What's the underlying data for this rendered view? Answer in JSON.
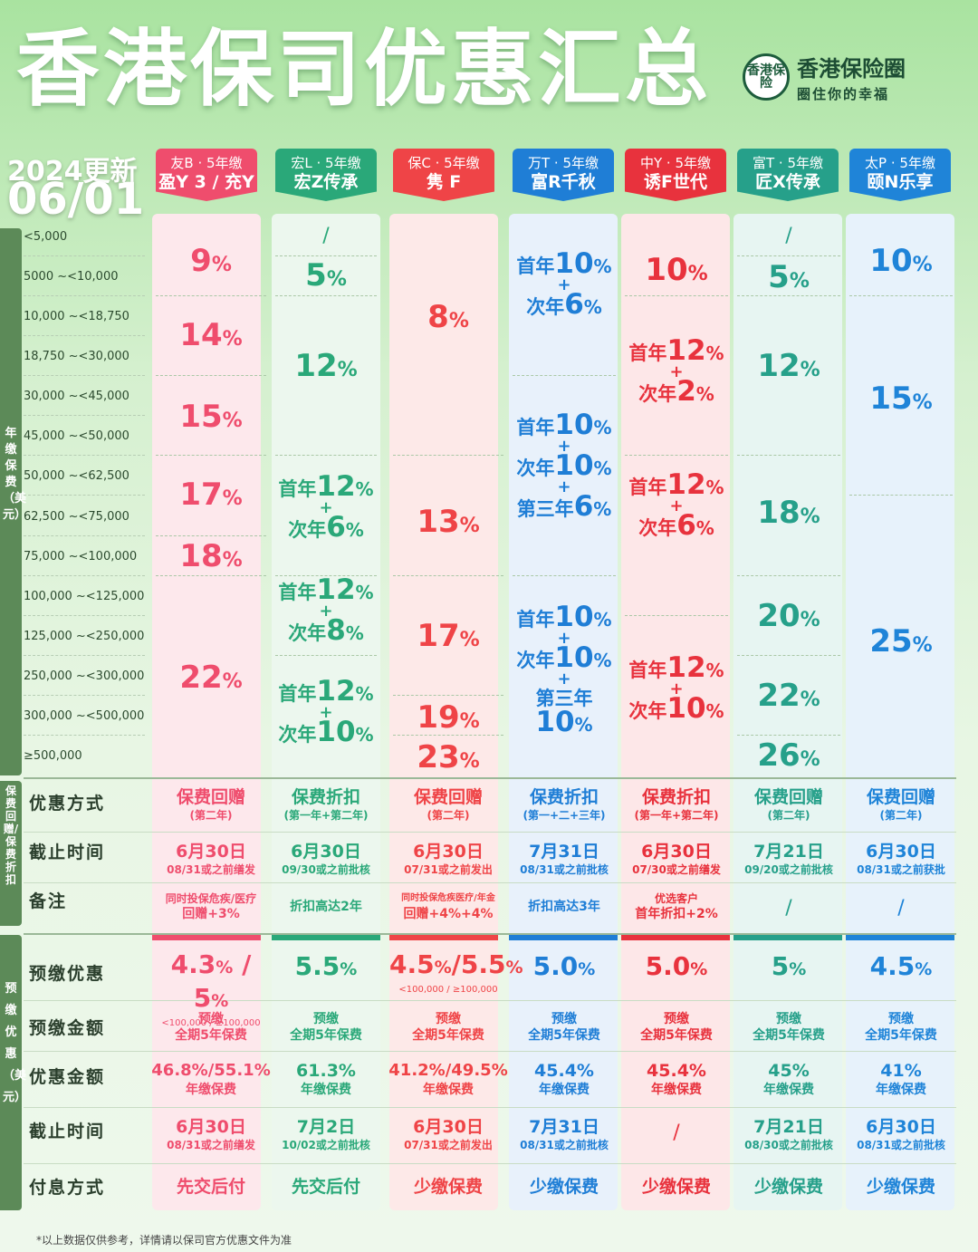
{
  "title": "香港保司优惠汇总",
  "brand": {
    "logo_text": "香港保险",
    "name": "香港保险圈",
    "slogan": "圈住你的幸福"
  },
  "update": {
    "year": "2024更新",
    "date": "06/01"
  },
  "side_titles": {
    "premium": "年缴保费（美元）",
    "rebate": "保费回赠/保费折扣",
    "prepay": "预缴优惠（美元）"
  },
  "bands": [
    "<5,000",
    "5000    ~<10,000",
    "10,000  ~<18,750",
    "18,750  ~<30,000",
    "30,000  ~<45,000",
    "45,000  ~<50,000",
    "50,000  ~<62,500",
    "62,500  ~<75,000",
    "75,000  ~<100,000",
    "100,000 ~<125,000",
    "125,000 ~<250,000",
    "250,000 ~<300,000",
    "300,000 ~<500,000",
    "≥500,000"
  ],
  "colors": {
    "c1": "#ef4d6d",
    "c2": "#2aa879",
    "c3": "#ef4447",
    "c4": "#1f7ed6",
    "c5": "#e8323d",
    "c6": "#26a08a",
    "c7": "#1f84d8"
  },
  "products": [
    {
      "l1": "友B · 5年缴",
      "l2": "盈Y 3 / 充Y"
    },
    {
      "l1": "宏L · 5年缴",
      "l2": "宏Z传承"
    },
    {
      "l1": "保C · 5年缴",
      "l2": "隽 F"
    },
    {
      "l1": "万T · 5年缴",
      "l2": "富R千秋"
    },
    {
      "l1": "中Y · 5年缴",
      "l2": "诱F世代"
    },
    {
      "l1": "富T · 5年缴",
      "l2": "匠X传承"
    },
    {
      "l1": "太P · 5年缴",
      "l2": "颐N乐享"
    }
  ],
  "rates": {
    "c1": [
      "9",
      "%",
      "14",
      "%",
      "15",
      "%",
      "17",
      "%",
      "18",
      "%",
      "22",
      "%"
    ],
    "c2": [
      "/",
      "5",
      "%",
      "12",
      "%"
    ],
    "c3": [
      "8",
      "%",
      "13",
      "%",
      "17",
      "%",
      "19",
      "%",
      "23",
      "%"
    ],
    "c5": [
      "10",
      "%"
    ],
    "c6": [
      "/",
      "5",
      "%",
      "12",
      "%",
      "18",
      "%",
      "20",
      "%",
      "22",
      "%",
      "26",
      "%"
    ],
    "c7": [
      "10",
      "%",
      "15",
      "%",
      "25",
      "%"
    ]
  },
  "mix": {
    "first": "首年",
    "second": "次年",
    "third": "第三年",
    "plus": "+",
    "c2a": [
      "12",
      "%",
      "6",
      "%"
    ],
    "c2b": [
      "12",
      "%",
      "8",
      "%"
    ],
    "c2c": [
      "12",
      "%",
      "10",
      "%"
    ],
    "c4a": [
      "10",
      "%",
      "6",
      "%"
    ],
    "c4b": [
      "10",
      "%",
      "10",
      "%",
      "6",
      "%"
    ],
    "c4c": [
      "10",
      "%",
      "10",
      "%",
      "10",
      "%"
    ],
    "c5a": [
      "12",
      "%",
      "2",
      "%"
    ],
    "c5b": [
      "12",
      "%",
      "6",
      "%"
    ],
    "c5c": [
      "12",
      "%",
      "10",
      "%"
    ]
  },
  "rows": {
    "method": "优惠方式",
    "deadline": "截止时间",
    "remark": "备注",
    "prepay": "预缴优惠",
    "prepay_amount": "预缴金额",
    "discount_amount": "优惠金额",
    "deadline2": "截止时间",
    "payment": "付息方式"
  },
  "method": [
    [
      "保费回赠",
      "(第二年)"
    ],
    [
      "保费折扣",
      "(第一年+第二年)"
    ],
    [
      "保费回赠",
      "(第二年)"
    ],
    [
      "保费折扣",
      "(第一+二+三年)"
    ],
    [
      "保费折扣",
      "(第一年+第二年)"
    ],
    [
      "保费回赠",
      "(第二年)"
    ],
    [
      "保费回赠",
      "(第二年)"
    ]
  ],
  "deadline": [
    [
      "6月30日",
      "08/31或之前缮发"
    ],
    [
      "6月30日",
      "09/30或之前批核"
    ],
    [
      "6月30日",
      "07/31或之前发出"
    ],
    [
      "7月31日",
      "08/31或之前批核"
    ],
    [
      "6月30日",
      "07/30或之前缮发"
    ],
    [
      "7月21日",
      "09/20或之前批核"
    ],
    [
      "6月30日",
      "08/31或之前获批"
    ]
  ],
  "remark": [
    [
      "同时投保危疾/医疗",
      "回赠+3%"
    ],
    [
      "折扣高达2年",
      ""
    ],
    [
      "同时投保危疾医疗/年金",
      "回赠+4%+4%"
    ],
    [
      "折扣高达3年",
      ""
    ],
    [
      "优选客户",
      "首年折扣+2%"
    ],
    [
      "/",
      ""
    ],
    [
      "/",
      ""
    ]
  ],
  "prepay": [
    [
      "4.3",
      "%",
      " / ",
      "5",
      "%",
      "<100,000  /  ≥100,000"
    ],
    [
      "5.5",
      "%",
      "",
      "",
      "",
      ""
    ],
    [
      "4.5",
      "%",
      "/",
      "5.5",
      "%",
      "<100,000  /  ≥100,000"
    ],
    [
      "5.0",
      "%",
      "",
      "",
      "",
      ""
    ],
    [
      "5.0",
      "%",
      "",
      "",
      "",
      ""
    ],
    [
      "5",
      "%",
      "",
      "",
      "",
      ""
    ],
    [
      "4.5",
      "%",
      "",
      "",
      "",
      ""
    ]
  ],
  "prepay_amount": [
    "预缴",
    "全期5年保费"
  ],
  "discount_amount": [
    [
      "46.8%/55.1%",
      "年缴保费"
    ],
    [
      "61.3%",
      "年缴保费"
    ],
    [
      "41.2%/49.5%",
      "年缴保费"
    ],
    [
      "45.4%",
      "年缴保费"
    ],
    [
      "45.4%",
      "年缴保费"
    ],
    [
      "45%",
      "年缴保费"
    ],
    [
      "41%",
      "年缴保费"
    ]
  ],
  "deadline2": [
    [
      "6月30日",
      "08/31或之前缮发"
    ],
    [
      "7月2日",
      "10/02或之前批核"
    ],
    [
      "6月30日",
      "07/31或之前发出"
    ],
    [
      "7月31日",
      "08/31或之前批核"
    ],
    [
      "/",
      ""
    ],
    [
      "7月21日",
      "08/30或之前批核"
    ],
    [
      "6月30日",
      "08/31或之前批核"
    ]
  ],
  "payment": [
    "先交后付",
    "先交后付",
    "少缴保费",
    "少缴保费",
    "少缴保费",
    "少缴保费",
    "少缴保费"
  ],
  "footnote": "*以上数据仅供参考，详情请以保司官方优惠文件为准"
}
